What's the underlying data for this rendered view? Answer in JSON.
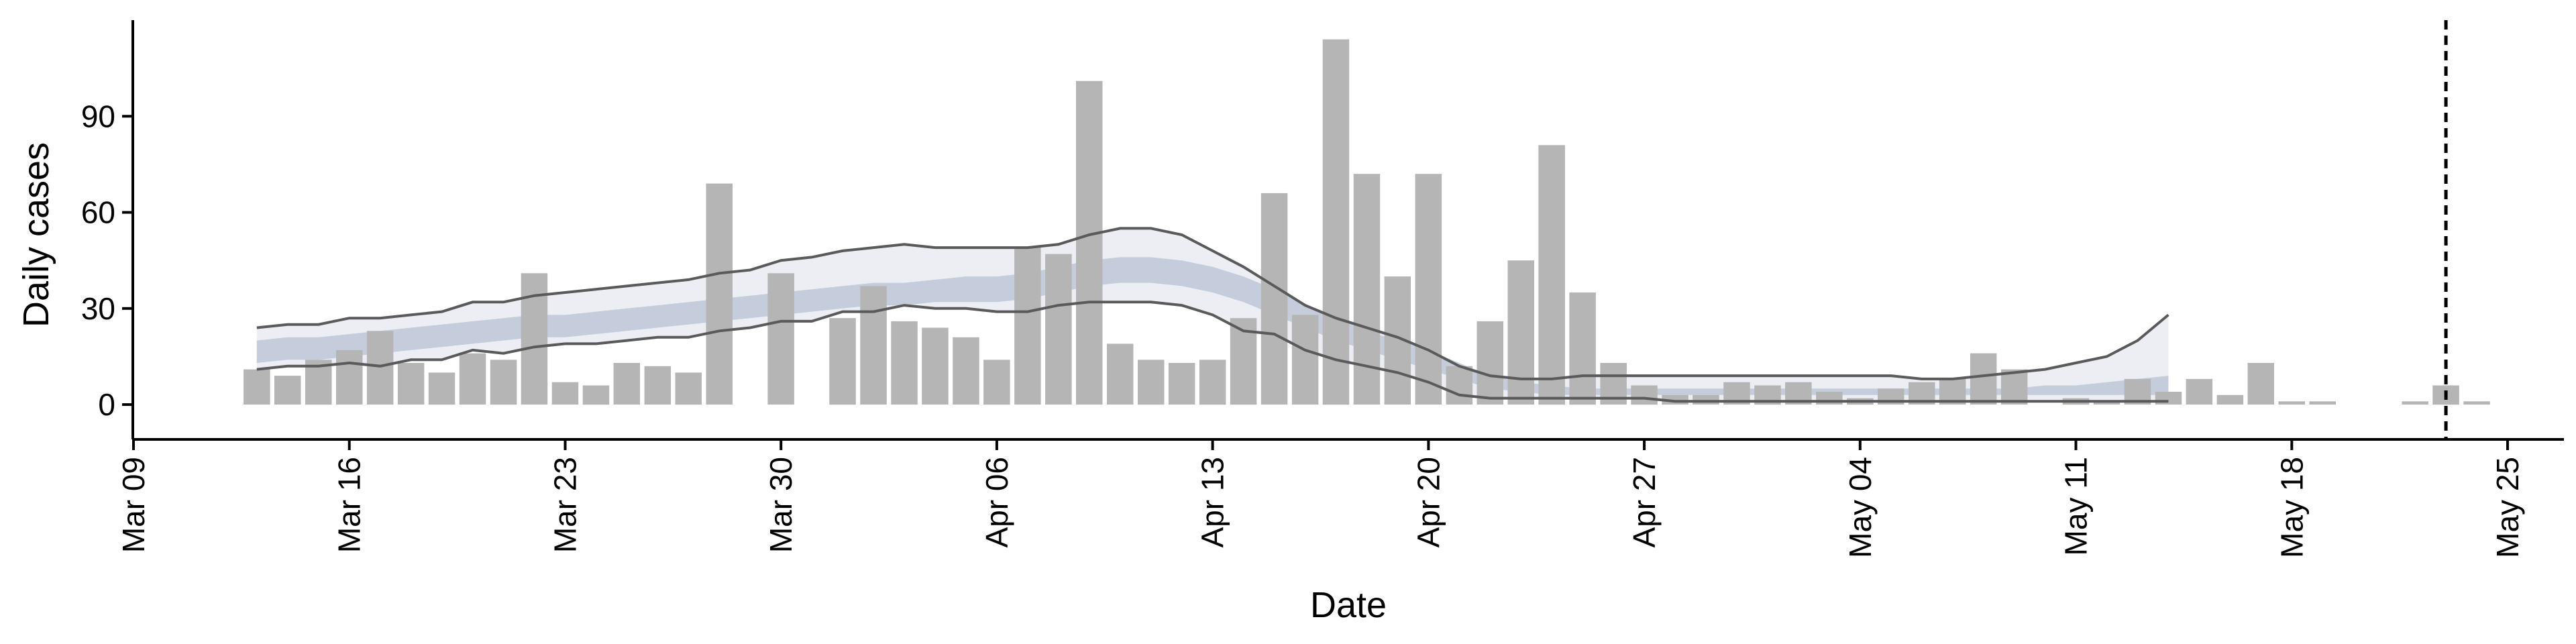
{
  "chart_data": {
    "type": "bar",
    "title": "",
    "xlabel": "Date",
    "ylabel": "Daily cases",
    "year": 2020,
    "x_ticks": [
      "Mar 09",
      "Mar 16",
      "Mar 23",
      "Mar 30",
      "Apr 06",
      "Apr 13",
      "Apr 20",
      "Apr 27",
      "May 04",
      "May 11",
      "May 18",
      "May 25"
    ],
    "y_ticks": [
      0,
      30,
      60,
      90
    ],
    "xlim": [
      "2020-03-09",
      "2020-05-25"
    ],
    "ylim": [
      -5,
      120
    ],
    "grid": false,
    "legend": "none",
    "colors": {
      "bars": "#b5b5b5",
      "inner_band": "#b8c1d6",
      "outer_band": "#e6e8f0",
      "bound_lines": "#5a5a5a",
      "vline": "#000000"
    },
    "bars": {
      "start_date": "2020-03-13",
      "values": [
        11,
        9,
        14,
        17,
        23,
        13,
        10,
        16,
        14,
        41,
        7,
        6,
        13,
        12,
        10,
        69,
        0,
        41,
        0,
        27,
        37,
        26,
        24,
        21,
        14,
        49,
        47,
        101,
        19,
        14,
        13,
        14,
        27,
        66,
        28,
        114,
        72,
        40,
        72,
        12,
        26,
        45,
        81,
        35,
        13,
        6,
        3,
        3,
        7,
        6,
        7,
        4,
        2,
        5,
        7,
        8,
        16,
        11,
        0,
        2,
        1,
        8,
        4,
        8,
        3,
        13,
        1,
        1,
        0,
        0,
        1,
        6,
        1
      ]
    },
    "forecast_band": {
      "start_date": "2020-03-13",
      "end_date": "2020-05-14",
      "inner_upper": [
        20,
        21,
        21,
        22,
        23,
        24,
        25,
        26,
        27,
        28,
        28,
        29,
        30,
        31,
        32,
        33,
        34,
        35,
        36,
        37,
        38,
        38,
        39,
        40,
        40,
        41,
        43,
        45,
        46,
        46,
        45,
        43,
        40,
        36,
        31,
        27,
        23,
        20,
        17,
        13,
        9,
        7,
        6,
        5,
        5,
        5,
        5,
        5,
        5,
        5,
        5,
        5,
        5,
        5,
        5,
        5,
        5,
        5,
        6,
        6,
        7,
        8,
        9
      ],
      "inner_lower": [
        13,
        14,
        14,
        15,
        16,
        17,
        18,
        19,
        20,
        21,
        21,
        22,
        23,
        24,
        25,
        26,
        27,
        28,
        29,
        30,
        31,
        31,
        32,
        32,
        32,
        33,
        35,
        37,
        38,
        38,
        37,
        35,
        32,
        28,
        24,
        20,
        17,
        14,
        11,
        8,
        5,
        4,
        3,
        3,
        3,
        3,
        3,
        3,
        3,
        3,
        3,
        3,
        3,
        3,
        3,
        3,
        3,
        3,
        3,
        3,
        3,
        3,
        3
      ],
      "outer_upper": [
        24,
        25,
        25,
        27,
        27,
        28,
        29,
        32,
        32,
        34,
        35,
        36,
        37,
        38,
        39,
        41,
        42,
        45,
        46,
        48,
        49,
        50,
        49,
        49,
        49,
        49,
        50,
        53,
        55,
        55,
        53,
        48,
        43,
        37,
        31,
        27,
        24,
        21,
        17,
        12,
        9,
        8,
        8,
        9,
        9,
        9,
        9,
        9,
        9,
        9,
        9,
        9,
        9,
        9,
        8,
        8,
        9,
        10,
        11,
        13,
        15,
        20,
        28
      ],
      "outer_lower": [
        11,
        12,
        12,
        13,
        12,
        14,
        14,
        17,
        16,
        18,
        19,
        19,
        20,
        21,
        21,
        23,
        24,
        26,
        26,
        29,
        29,
        31,
        30,
        30,
        29,
        29,
        31,
        32,
        32,
        32,
        31,
        28,
        23,
        22,
        17,
        14,
        12,
        10,
        7,
        3,
        2,
        2,
        2,
        2,
        2,
        2,
        1,
        1,
        1,
        1,
        1,
        1,
        1,
        1,
        1,
        1,
        1,
        1,
        1,
        1,
        1,
        1,
        1
      ]
    },
    "vline_date": "2020-05-23"
  }
}
